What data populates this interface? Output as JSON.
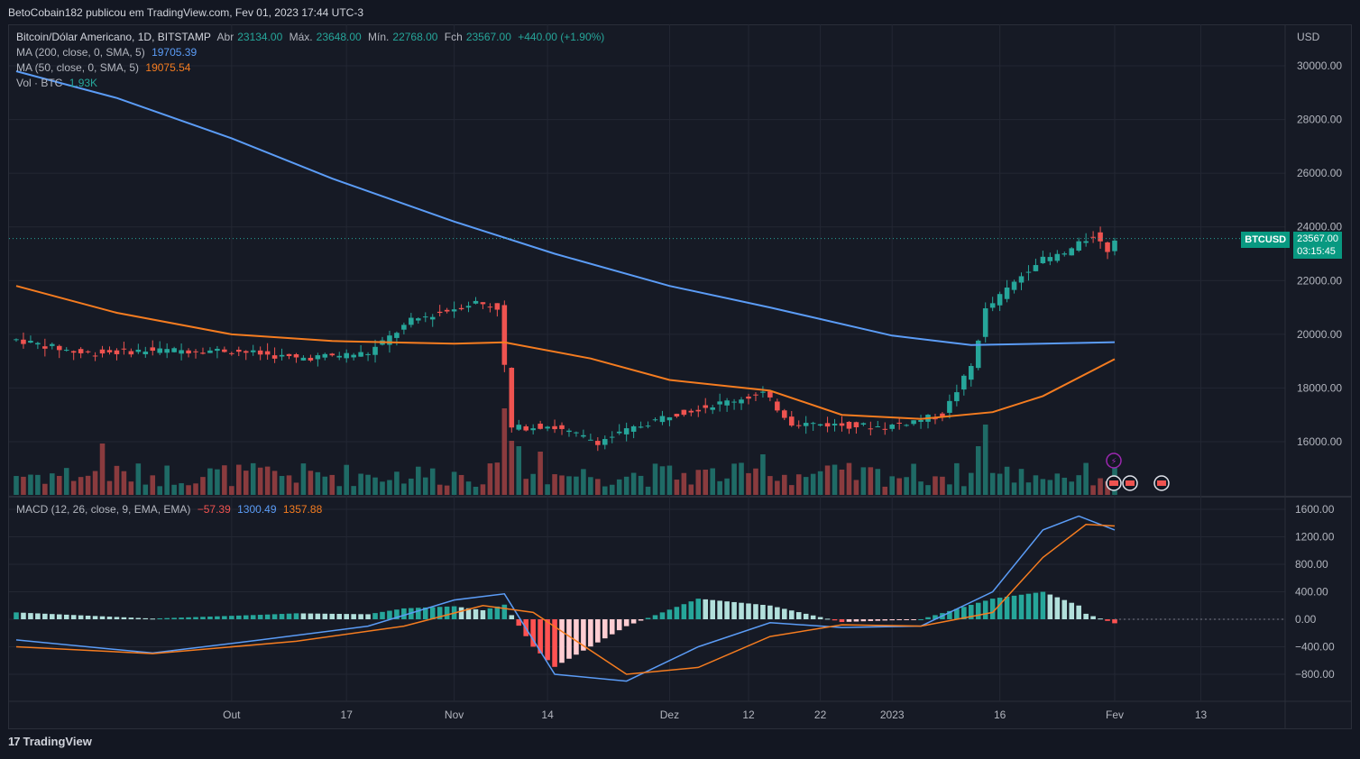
{
  "header": {
    "publisher": "BetoCobain182 publicou em TradingView.com, Fev 01, 2023 17:44 UTC-3"
  },
  "legend": {
    "symbol": "Bitcoin/Dólar Americano, 1D, BITSTAMP",
    "open_label": "Abr",
    "open": "23134.00",
    "high_label": "Máx.",
    "high": "23648.00",
    "low_label": "Mín.",
    "low": "22768.00",
    "close_label": "Fch",
    "close": "23567.00",
    "change": "+440.00 (+1.90%)",
    "ma200_label": "MA (200, close, 0, SMA, 5)",
    "ma200_value": "19705.39",
    "ma50_label": "MA (50, close, 0, SMA, 5)",
    "ma50_value": "19075.54",
    "vol_label": "Vol · BTC",
    "vol_value": "1.93K"
  },
  "macd_legend": {
    "label": "MACD (12, 26, close, 9, EMA, EMA)",
    "hist": "−57.39",
    "macd": "1300.49",
    "signal": "1357.88"
  },
  "price_tag": {
    "symbol": "BTCUSD",
    "price": "23567.00",
    "countdown": "03:15:45"
  },
  "footer": {
    "brand": "TradingView",
    "logo": "17"
  },
  "colors": {
    "up": "#26a69a",
    "down": "#ef5350",
    "ma200": "#5b9cf6",
    "ma50": "#f57c20",
    "background": "#161a25",
    "grid": "#232733"
  },
  "chart_data": [
    {
      "type": "candlestick",
      "title": "Bitcoin/Dólar Americano, 1D, BITSTAMP",
      "currency": "USD",
      "y_ticks": [
        "16000.00",
        "18000.00",
        "20000.00",
        "22000.00",
        "24000.00",
        "26000.00",
        "28000.00",
        "30000.00"
      ],
      "x_ticks": [
        "Out",
        "17",
        "Nov",
        "14",
        "Dez",
        "12",
        "22",
        "2023",
        "16",
        "Fev",
        "13"
      ],
      "series_ma200": [
        [
          "2022-09-01",
          29800
        ],
        [
          "2022-09-15",
          28800
        ],
        [
          "2022-10-01",
          27300
        ],
        [
          "2022-10-15",
          25800
        ],
        [
          "2022-11-01",
          24200
        ],
        [
          "2022-11-15",
          23000
        ],
        [
          "2022-12-01",
          21800
        ],
        [
          "2022-12-15",
          21000
        ],
        [
          "2023-01-01",
          19950
        ],
        [
          "2023-01-12",
          19600
        ],
        [
          "2023-01-22",
          19650
        ],
        [
          "2023-02-01",
          19705
        ]
      ],
      "series_ma50": [
        [
          "2022-09-01",
          21800
        ],
        [
          "2022-09-15",
          20800
        ],
        [
          "2022-10-01",
          20000
        ],
        [
          "2022-10-15",
          19750
        ],
        [
          "2022-11-01",
          19650
        ],
        [
          "2022-11-08",
          19700
        ],
        [
          "2022-11-20",
          19100
        ],
        [
          "2022-12-01",
          18300
        ],
        [
          "2022-12-15",
          17900
        ],
        [
          "2022-12-25",
          17000
        ],
        [
          "2023-01-05",
          16850
        ],
        [
          "2023-01-15",
          17100
        ],
        [
          "2023-01-22",
          17700
        ],
        [
          "2023-02-01",
          19075
        ]
      ],
      "last_price": 23567.0,
      "events": [
        "flash-icon",
        "us-flag-icon",
        "us-flag-icon",
        "us-flag-icon"
      ]
    },
    {
      "type": "bar",
      "title": "MACD (12, 26, close, 9, EMA, EMA)",
      "y_ticks": [
        "−800.00",
        "−400.00",
        "0.00",
        "400.00",
        "800.00",
        "1200.00",
        "1600.00"
      ],
      "macd_line": [
        [
          "2022-09-01",
          -300
        ],
        [
          "2022-09-20",
          -490
        ],
        [
          "2022-10-05",
          -300
        ],
        [
          "2022-10-20",
          -100
        ],
        [
          "2022-11-01",
          280
        ],
        [
          "2022-11-08",
          370
        ],
        [
          "2022-11-15",
          -800
        ],
        [
          "2022-11-25",
          -900
        ],
        [
          "2022-12-05",
          -400
        ],
        [
          "2022-12-15",
          -50
        ],
        [
          "2022-12-25",
          -120
        ],
        [
          "2023-01-05",
          -100
        ],
        [
          "2023-01-15",
          400
        ],
        [
          "2023-01-22",
          1300
        ],
        [
          "2023-01-27",
          1500
        ],
        [
          "2023-02-01",
          1300
        ]
      ],
      "signal_line": [
        [
          "2022-09-01",
          -400
        ],
        [
          "2022-09-20",
          -500
        ],
        [
          "2022-10-10",
          -320
        ],
        [
          "2022-10-25",
          -100
        ],
        [
          "2022-11-05",
          200
        ],
        [
          "2022-11-12",
          100
        ],
        [
          "2022-11-25",
          -800
        ],
        [
          "2022-12-05",
          -700
        ],
        [
          "2022-12-15",
          -250
        ],
        [
          "2022-12-25",
          -80
        ],
        [
          "2023-01-05",
          -100
        ],
        [
          "2023-01-15",
          100
        ],
        [
          "2023-01-22",
          900
        ],
        [
          "2023-01-28",
          1380
        ],
        [
          "2023-02-01",
          1358
        ]
      ]
    }
  ]
}
